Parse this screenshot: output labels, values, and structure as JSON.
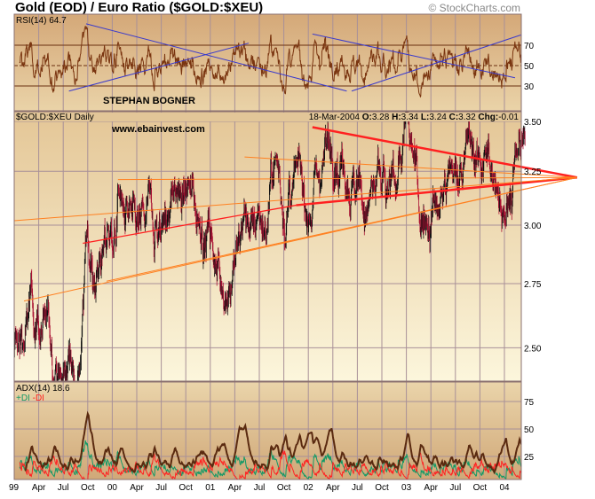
{
  "header": {
    "title": "Gold (EOD) / Euro Ratio ($GOLD:$XEU)",
    "copyright": "© StockCharts.com"
  },
  "rsi_panel": {
    "label": "RSI(14) 64.7",
    "author": "STEPHAN BOGNER",
    "ticks": [
      "70",
      "50",
      "30"
    ]
  },
  "price_panel": {
    "label": "$GOLD:$XEU Daily",
    "website": "www.ebainvest.com",
    "date": "18-Mar-2004",
    "open_label": "O:",
    "open": "3.28",
    "high_label": "H:",
    "high": "3.34",
    "low_label": "L:",
    "low": "3.24",
    "close_label": "C:",
    "close": "3.32",
    "chg_label": "Chg:",
    "chg": "-0.01",
    "ticks": [
      "3.50",
      "3.25",
      "3.00",
      "2.75",
      "2.50"
    ]
  },
  "adx_panel": {
    "label": "ADX(14)  18.6",
    "plus_di": "+DI",
    "minus_di": "-DI",
    "ticks": [
      "75",
      "50",
      "25"
    ]
  },
  "colors": {
    "plus_di": "#119966",
    "minus_di": "#ff2222",
    "adx": "#5a2a10",
    "rsi": "#7a3510",
    "trend_red": "#ff2020",
    "trend_orange": "#ff8020",
    "rsi_trend": "#3a3acc",
    "grid": "#a89098"
  },
  "chart_data": {
    "type": "line",
    "title": "Gold (EOD) / Euro Ratio ($GOLD:$XEU)",
    "x_tick_labels": [
      "99",
      "Apr",
      "Jul",
      "Oct",
      "00",
      "Apr",
      "Jul",
      "Oct",
      "01",
      "Apr",
      "Jul",
      "Oct",
      "02",
      "Apr",
      "Jul",
      "Oct",
      "03",
      "Apr",
      "Jul",
      "Oct",
      "04"
    ],
    "x_range_months_from_jan1999": [
      0,
      62.5
    ],
    "price": {
      "scale": "log",
      "ylim": [
        2.38,
        3.55
      ],
      "y_ticks": [
        3.5,
        3.25,
        3.0,
        2.75,
        2.5
      ],
      "monthly_approx": [
        2.45,
        2.55,
        2.62,
        2.65,
        2.5,
        2.45,
        2.4,
        2.42,
        2.6,
        3.0,
        2.85,
        2.9,
        2.95,
        3.15,
        2.95,
        2.9,
        2.95,
        3.05,
        3.05,
        3.1,
        3.15,
        3.1,
        3.1,
        3.05,
        2.95,
        2.85,
        2.8,
        2.9,
        3.05,
        3.05,
        3.1,
        3.05,
        3.25,
        3.1,
        3.1,
        3.15,
        3.15,
        3.2,
        3.4,
        3.45,
        3.4,
        3.3,
        3.1,
        3.15,
        3.2,
        3.1,
        3.05,
        3.25,
        3.35,
        3.3,
        3.1,
        3.05,
        3.05,
        3.1,
        3.2,
        3.4,
        3.3,
        3.3,
        3.25,
        3.2,
        3.15,
        3.18,
        3.32
      ],
      "trendlines": [
        {
          "kind": "red",
          "from": [
            36.5,
            3.47
          ],
          "to": [
            68.9,
            3.22
          ]
        },
        {
          "kind": "red-thin",
          "from": [
            8.4,
            2.92
          ],
          "to": [
            34.5,
            3.09
          ]
        },
        {
          "kind": "red",
          "from": [
            34.5,
            3.09
          ],
          "to": [
            68.9,
            3.22
          ]
        },
        {
          "kind": "orange",
          "from": [
            1.2,
            2.68
          ],
          "to": [
            68.9,
            3.22
          ]
        },
        {
          "kind": "orange",
          "from": [
            12.7,
            3.21
          ],
          "to": [
            68.9,
            3.22
          ]
        },
        {
          "kind": "orange",
          "from": [
            28.2,
            3.32
          ],
          "to": [
            68.9,
            3.22
          ]
        },
        {
          "kind": "orange",
          "from": [
            11.3,
            2.76
          ],
          "to": [
            68.9,
            3.22
          ]
        },
        {
          "kind": "orange",
          "from": [
            0,
            3.02
          ],
          "to": [
            68.9,
            3.22
          ]
        }
      ]
    },
    "rsi": {
      "period": 14,
      "last": 64.7,
      "ylim": [
        5,
        100
      ],
      "levels": [
        70,
        50,
        30
      ],
      "trendlines": [
        {
          "from": [
            8.8,
            91
          ],
          "to": [
            40.7,
            25
          ]
        },
        {
          "from": [
            6.7,
            25
          ],
          "to": [
            28.7,
            72
          ]
        },
        {
          "from": [
            36.5,
            81
          ],
          "to": [
            61.3,
            38
          ]
        },
        {
          "from": [
            41.3,
            25
          ],
          "to": [
            62,
            80
          ]
        }
      ]
    },
    "adx": {
      "period": 14,
      "last": 18.6,
      "ylim": [
        4,
        92
      ],
      "y_ticks": [
        75,
        50,
        25
      ]
    }
  }
}
